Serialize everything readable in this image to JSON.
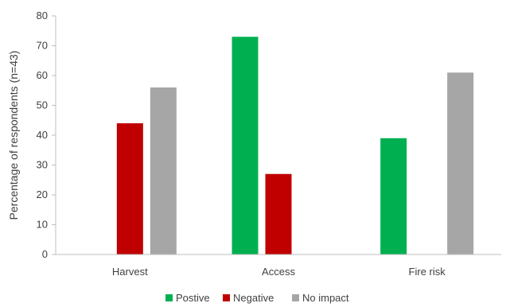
{
  "chart_data": {
    "type": "bar",
    "title": "",
    "xlabel": "",
    "ylabel": "Percentage of respondents (n=43)",
    "ylim": [
      0,
      80
    ],
    "yticks": [
      0,
      10,
      20,
      30,
      40,
      50,
      60,
      70,
      80
    ],
    "grid": false,
    "legend_position": "bottom",
    "categories": [
      "Harvest",
      "Access",
      "Fire risk"
    ],
    "series": [
      {
        "name": "Postive",
        "color": "#00b050",
        "values": [
          0,
          73,
          39
        ]
      },
      {
        "name": "Negative",
        "color": "#c00000",
        "values": [
          44,
          27,
          0
        ]
      },
      {
        "name": "No impact",
        "color": "#a6a6a6",
        "values": [
          56,
          0,
          61
        ]
      }
    ]
  }
}
